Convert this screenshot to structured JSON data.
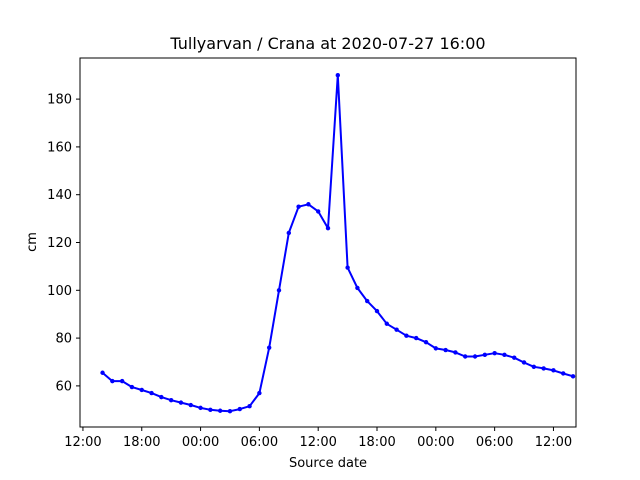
{
  "chart_data": {
    "type": "line",
    "title": "Tullyarvan / Crana at 2020-07-27 16:00",
    "xlabel": "Source date",
    "ylabel": "cm",
    "x_tick_labels": [
      "12:00",
      "18:00",
      "00:00",
      "06:00",
      "12:00",
      "18:00",
      "00:00",
      "06:00",
      "12:00"
    ],
    "x_tick_hours": [
      -2,
      4,
      10,
      16,
      22,
      28,
      34,
      40,
      46
    ],
    "y_ticks": [
      60,
      80,
      100,
      120,
      140,
      160,
      180
    ],
    "xlim_hours": [
      -2.3,
      48.3
    ],
    "ylim": [
      42.8,
      197.2
    ],
    "grid": false,
    "series": [
      {
        "color": "#0000ff",
        "x_hours": [
          0,
          1,
          2,
          3,
          4,
          5,
          6,
          7,
          8,
          9,
          10,
          11,
          12,
          13,
          14,
          15,
          16,
          17,
          18,
          19,
          20,
          21,
          22,
          23,
          24,
          25,
          26,
          27,
          28,
          29,
          30,
          31,
          32,
          33,
          34,
          35,
          36,
          37,
          38,
          39,
          40,
          41,
          42,
          43,
          44,
          45,
          46,
          47,
          48
        ],
        "values": [
          65.5,
          62,
          62,
          59.5,
          58.3,
          57,
          55.3,
          54,
          53,
          52,
          50.8,
          50,
          49.6,
          49.4,
          50.3,
          51.5,
          57,
          76,
          100,
          124,
          135,
          136,
          133,
          126,
          190,
          109.5,
          101,
          95.5,
          91.3,
          86,
          83.5,
          81,
          80,
          78.3,
          75.7,
          75,
          74,
          72.3,
          72.3,
          73,
          73.7,
          73,
          71.8,
          69.8,
          68,
          67.3,
          66.5,
          65.2,
          64
        ]
      }
    ]
  }
}
